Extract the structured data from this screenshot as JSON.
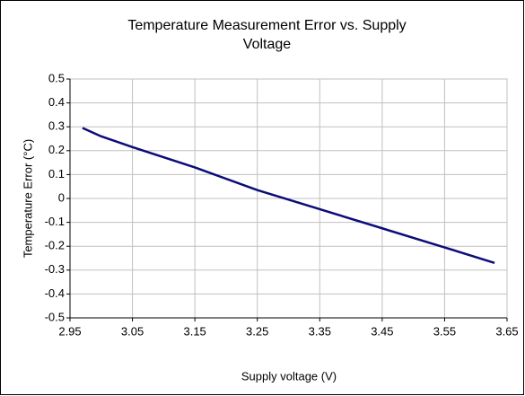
{
  "chart_data": {
    "type": "line",
    "title": "Temperature Measurement Error vs. Supply Voltage",
    "x_label": "Supply voltage (V)",
    "y_label": "Temperature Error (°C)",
    "x": [
      2.97,
      3.0,
      3.05,
      3.15,
      3.25,
      3.35,
      3.45,
      3.55,
      3.63
    ],
    "series": [
      {
        "name": "Temperature Error",
        "color": "#0c0c78",
        "values": [
          0.295,
          0.26,
          0.215,
          0.13,
          0.035,
          -0.045,
          -0.125,
          -0.205,
          -0.27
        ]
      }
    ],
    "xlim": [
      2.95,
      3.65
    ],
    "xticks": [
      2.95,
      3.05,
      3.15,
      3.25,
      3.35,
      3.45,
      3.55,
      3.65
    ],
    "ylim": [
      -0.5,
      0.5
    ],
    "yticks": [
      -0.5,
      -0.4,
      -0.3,
      -0.2,
      -0.1,
      0,
      0.1,
      0.2,
      0.3,
      0.4,
      0.5
    ],
    "grid": true
  }
}
